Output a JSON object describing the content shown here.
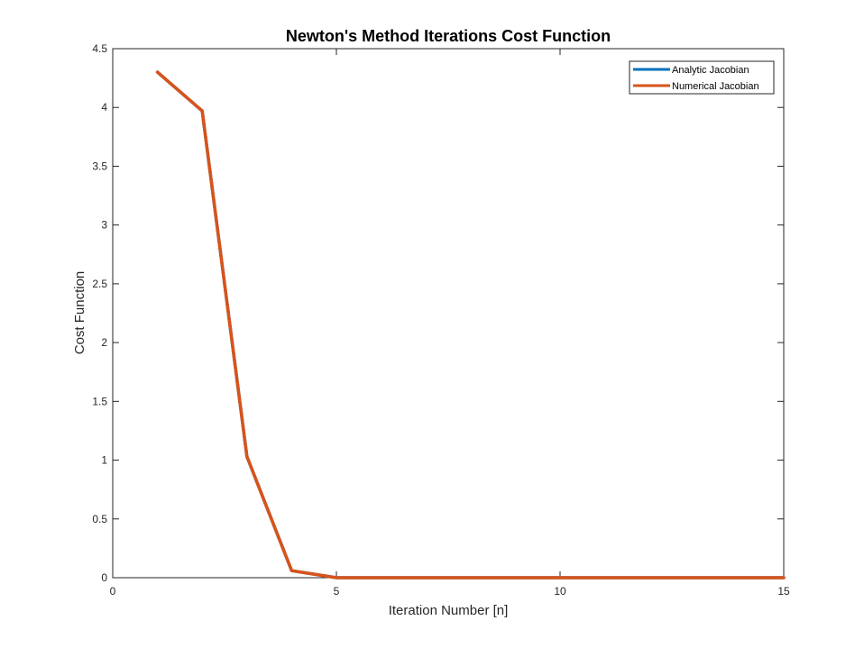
{
  "chart_data": {
    "type": "line",
    "title": "Newton's Method Iterations Cost Function",
    "xlabel": "Iteration Number [n]",
    "ylabel": "Cost Function",
    "xlim": [
      0,
      15
    ],
    "ylim": [
      0,
      4.5
    ],
    "xticks": [
      0,
      5,
      10,
      15
    ],
    "xtick_labels": [
      "0",
      "5",
      "10",
      "15"
    ],
    "yticks": [
      0,
      0.5,
      1,
      1.5,
      2,
      2.5,
      3,
      3.5,
      4,
      4.5
    ],
    "ytick_labels": [
      "0",
      "0.5",
      "1",
      "1.5",
      "2",
      "2.5",
      "3",
      "3.5",
      "4",
      "4.5"
    ],
    "grid": false,
    "legend_position": "top-right",
    "x": [
      1,
      2,
      3,
      4,
      5,
      6,
      7,
      8,
      9,
      10,
      11,
      12,
      13,
      14,
      15
    ],
    "series": [
      {
        "name": "Analytic Jacobian",
        "color": "#0072BD",
        "values": [
          4.3,
          3.97,
          1.03,
          0.06,
          0.0,
          0.0,
          0.0,
          0.0,
          0.0,
          0.0,
          0.0,
          0.0,
          0.0,
          0.0,
          0.0
        ]
      },
      {
        "name": "Numerical Jacobian",
        "color": "#D95319",
        "values": [
          4.3,
          3.97,
          1.03,
          0.06,
          0.0,
          0.0,
          0.0,
          0.0,
          0.0,
          0.0,
          0.0,
          0.0,
          0.0,
          0.0,
          0.0
        ]
      }
    ]
  }
}
